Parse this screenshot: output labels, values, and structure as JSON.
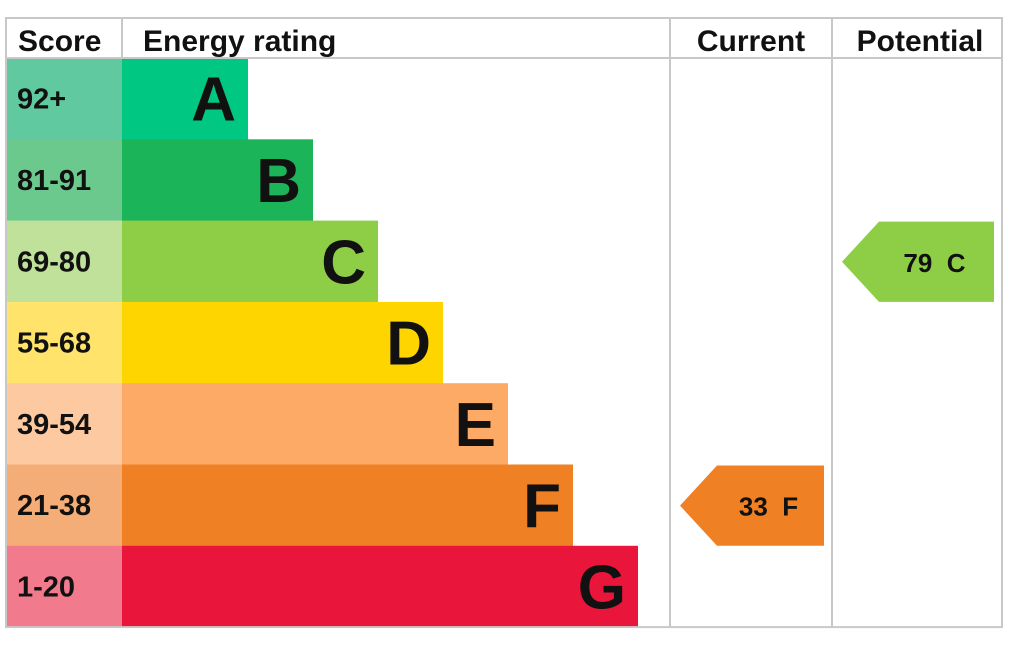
{
  "chart_data": {
    "type": "table",
    "headers": {
      "score": "Score",
      "rating": "Energy rating",
      "current": "Current",
      "potential": "Potential"
    },
    "bands": [
      {
        "letter": "A",
        "score": "92+",
        "bar_color": "#00c781",
        "score_color": "#61c9a0"
      },
      {
        "letter": "B",
        "score": "81-91",
        "bar_color": "#1cb459",
        "score_color": "#6cc98d"
      },
      {
        "letter": "C",
        "score": "69-80",
        "bar_color": "#8dce46",
        "score_color": "#bfe199"
      },
      {
        "letter": "D",
        "score": "55-68",
        "bar_color": "#ffd500",
        "score_color": "#ffe36b"
      },
      {
        "letter": "E",
        "score": "39-54",
        "bar_color": "#fcaa65",
        "score_color": "#fdc9a0"
      },
      {
        "letter": "F",
        "score": "21-38",
        "bar_color": "#ef8023",
        "score_color": "#f4ad76"
      },
      {
        "letter": "G",
        "score": "1-20",
        "bar_color": "#e9153b",
        "score_color": "#f27a8d"
      }
    ],
    "current": {
      "value": 33,
      "band": "F",
      "label": "33  F",
      "color": "#ef8023"
    },
    "potential": {
      "value": 79,
      "band": "C",
      "label": "79  C",
      "color": "#8dce46"
    }
  }
}
